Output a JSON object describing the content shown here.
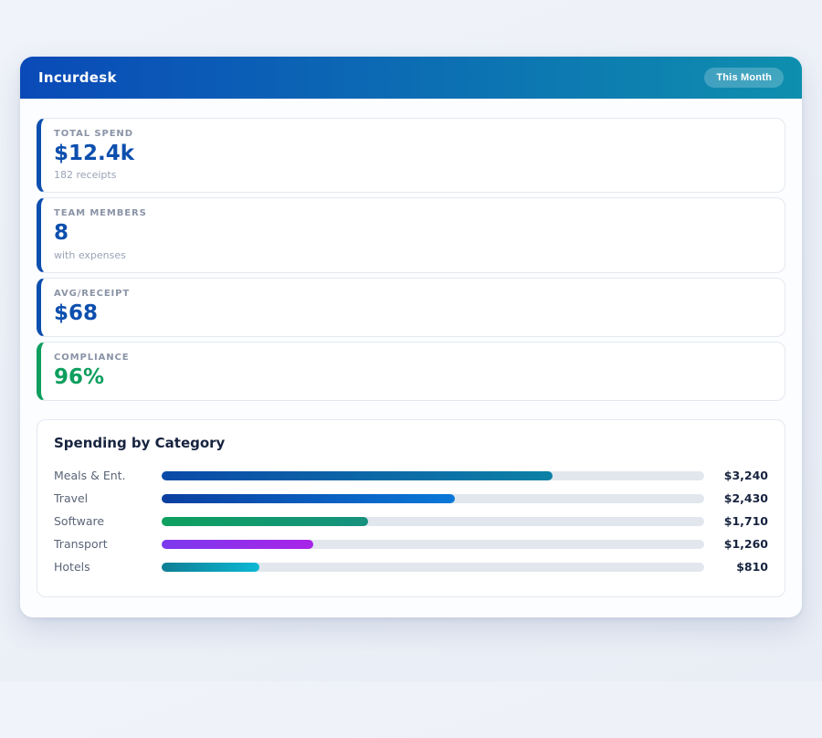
{
  "header": {
    "title": "Incurdesk",
    "badge_label": "This Month",
    "gradient_start": "#0a4ab8",
    "gradient_end": "#0e8fae"
  },
  "stats": [
    {
      "label": "TOTAL SPEND",
      "value": "$12.4k",
      "sub": "182 receipts",
      "accent": "#0d4fae",
      "value_color": "#0d4fae"
    },
    {
      "label": "TEAM MEMBERS",
      "value": "8",
      "sub": "with expenses",
      "accent": "#0d4fae",
      "value_color": "#0d4fae"
    },
    {
      "label": "AVG/RECEIPT",
      "value": "$68",
      "sub": "",
      "accent": "#0d4fae",
      "value_color": "#0d4fae"
    },
    {
      "label": "COMPLIANCE",
      "value": "96%",
      "sub": "",
      "accent": "#0e9e5e",
      "value_color": "#0e9e5e"
    }
  ],
  "chart_data": {
    "type": "bar",
    "orientation": "horizontal",
    "title": "Spending by Category",
    "categories": [
      "Meals & Ent.",
      "Travel",
      "Software",
      "Transport",
      "Hotels"
    ],
    "values": [
      3240,
      2430,
      1710,
      1260,
      810
    ],
    "value_labels": [
      "$3,240",
      "$2,430",
      "$1,710",
      "$1,260",
      "$810"
    ],
    "scale_max": 4500,
    "track_color": "#e2e7ee",
    "bar_gradients": [
      [
        "#0b4aa8",
        "#0d81a6"
      ],
      [
        "#0b3fa0",
        "#0a78d8"
      ],
      [
        "#0ea05e",
        "#16917f"
      ],
      [
        "#7c3aed",
        "#a823e8"
      ],
      [
        "#0e7e95",
        "#0bb8d4"
      ]
    ]
  }
}
